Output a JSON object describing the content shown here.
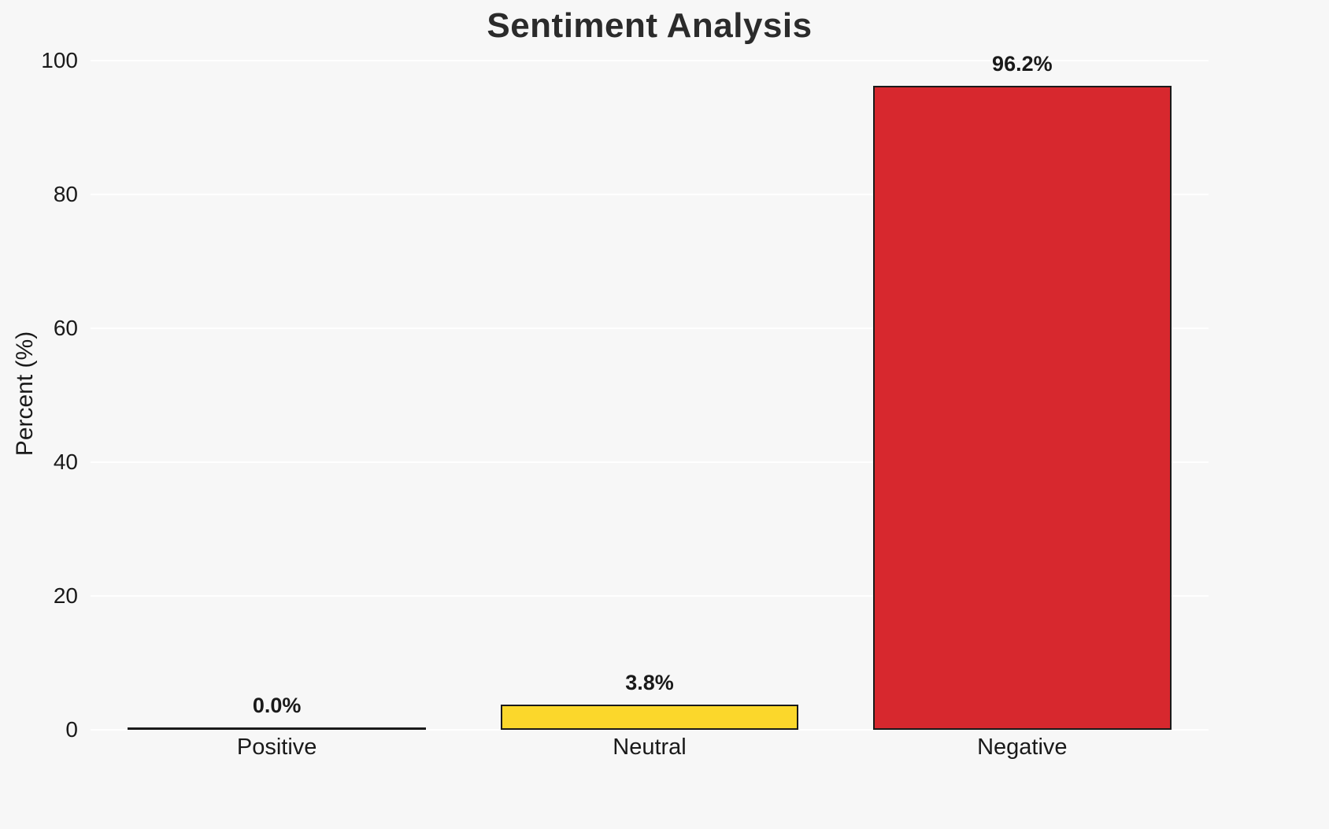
{
  "chart_data": {
    "type": "bar",
    "title": "Sentiment Analysis",
    "xlabel": "",
    "ylabel": "Percent (%)",
    "categories": [
      "Positive",
      "Neutral",
      "Negative"
    ],
    "values": [
      0.0,
      3.8,
      96.2
    ],
    "bar_value_labels": [
      "0.0%",
      "3.8%",
      "96.2%"
    ],
    "bar_colors": [
      null,
      "#FBD72B",
      "#D7282E"
    ],
    "edge_color": "#1A1A1A",
    "background_color": "#F7F7F7",
    "grid_color": "#FFFFFF",
    "text_color": "#1A1A1A",
    "ylim": [
      0,
      100
    ],
    "yticks": [
      0,
      20,
      40,
      60,
      80,
      100
    ],
    "grid": "horizontal",
    "legend": "none"
  }
}
